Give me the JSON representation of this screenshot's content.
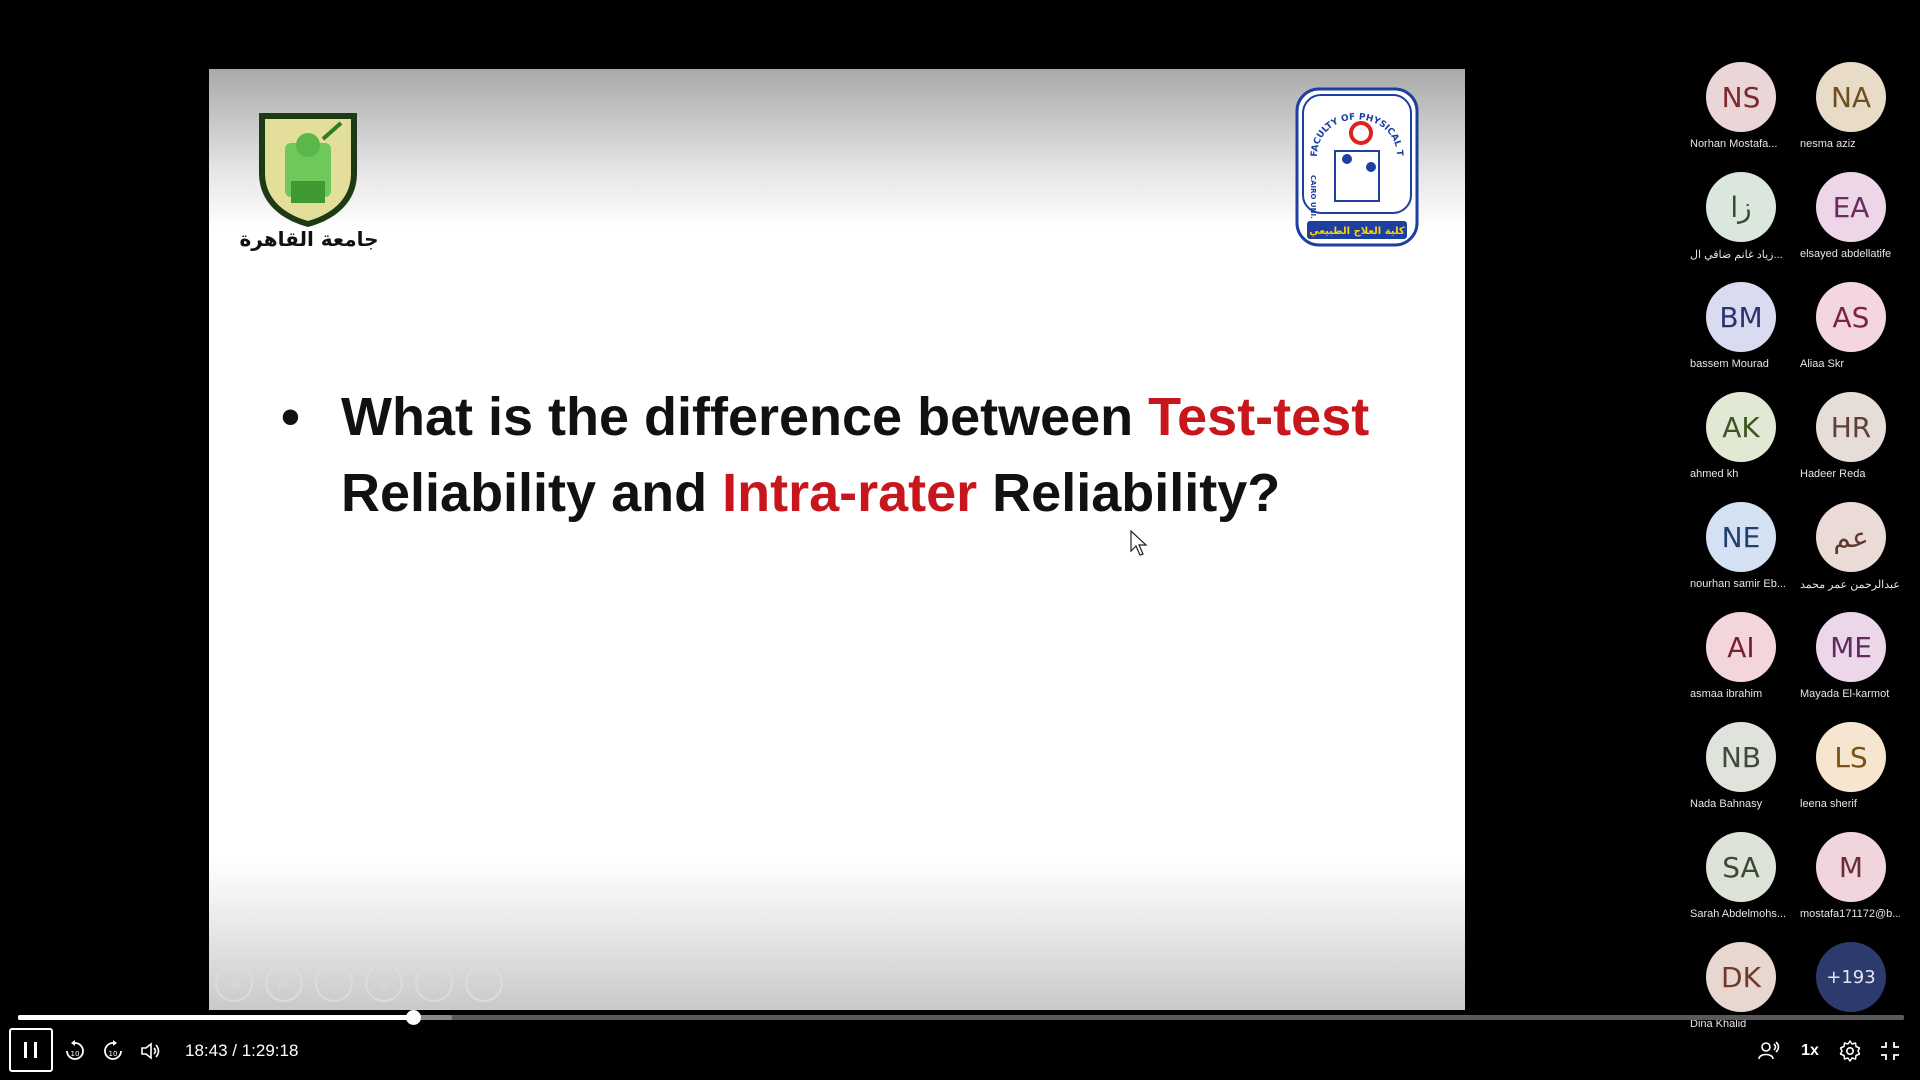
{
  "slide": {
    "left_logo_text": "جامعة القاهرة",
    "right_logo_top_text": "FACULTY OF PHYSICAL THERAPY",
    "right_logo_side_text": "CAIRO UNI.",
    "right_logo_arabic": "كلية العلاج الطبيعي",
    "bullet": "•",
    "line1_a": "What is the difference between ",
    "line1_b": "Test-test",
    "line2_a": "Reliability and ",
    "line2_b": "Intra-rater",
    "line2_c": " Reliability?"
  },
  "participants": [
    {
      "initials": "NS",
      "name": "Norhan Mostafa...",
      "bg": "#ead6d6",
      "fg": "#7a2a2a"
    },
    {
      "initials": "NA",
      "name": "nesma aziz",
      "bg": "#e8dcc8",
      "fg": "#6e4f1e"
    },
    {
      "initials": "زا",
      "name": "زياد غانم ضاقي ال...",
      "bg": "#dbe6dc",
      "fg": "#2f4f36"
    },
    {
      "initials": "EA",
      "name": "elsayed abdellatife",
      "bg": "#ecd6e8",
      "fg": "#6d2a5f"
    },
    {
      "initials": "BM",
      "name": "bassem Mourad",
      "bg": "#d9dbf0",
      "fg": "#2d3370"
    },
    {
      "initials": "AS",
      "name": "Aliaa Skr",
      "bg": "#f3d6df",
      "fg": "#7b2440"
    },
    {
      "initials": "AK",
      "name": "ahmed kh",
      "bg": "#e1e8d4",
      "fg": "#3f5420"
    },
    {
      "initials": "HR",
      "name": "Hadeer Reda",
      "bg": "#e6ddd8",
      "fg": "#5d4037"
    },
    {
      "initials": "NE",
      "name": "nourhan samir Eb...",
      "bg": "#d4e1f3",
      "fg": "#1f3f6e"
    },
    {
      "initials": "عم",
      "name": "عبدالرحمن عمر محمد",
      "bg": "#eadbd6",
      "fg": "#5d3a2f"
    },
    {
      "initials": "AI",
      "name": "asmaa ibrahim",
      "bg": "#f3d6dc",
      "fg": "#7a2030"
    },
    {
      "initials": "ME",
      "name": "Mayada El-karmot",
      "bg": "#ecd6ea",
      "fg": "#5f2a5d"
    },
    {
      "initials": "NB",
      "name": "Nada Bahnasy",
      "bg": "#dfe3dc",
      "fg": "#3f4a3a"
    },
    {
      "initials": "LS",
      "name": "leena sherif",
      "bg": "#f6e6cf",
      "fg": "#7a5218"
    },
    {
      "initials": "SA",
      "name": "Sarah Abdelmohs...",
      "bg": "#dde3d8",
      "fg": "#3a4a30"
    },
    {
      "initials": "M",
      "name": "mostafa171172@b...",
      "bg": "#f0d6dc",
      "fg": "#6e2a38"
    },
    {
      "initials": "DK",
      "name": "Dina Khalid",
      "bg": "#e8d6d0",
      "fg": "#6e3a2a"
    },
    {
      "initials": "+193",
      "name": "",
      "bg": "#2d3a6e",
      "fg": "#e6e6f2"
    }
  ],
  "player": {
    "current_time": "18:43",
    "separator": " / ",
    "total_time": "1:29:18",
    "speed": "1x",
    "progress": 0.2095,
    "buffered": 0.23
  },
  "icons": {
    "play_pause": "pause-icon",
    "rewind": "rewind-10-icon",
    "forward": "forward-10-icon",
    "volume": "volume-icon",
    "participants": "participants-icon",
    "settings": "gear-icon",
    "fullscreen": "exit-fullscreen-icon"
  }
}
